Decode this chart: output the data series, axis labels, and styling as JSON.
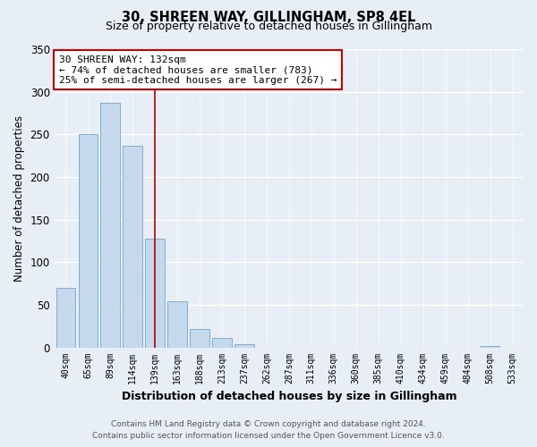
{
  "title": "30, SHREEN WAY, GILLINGHAM, SP8 4EL",
  "subtitle": "Size of property relative to detached houses in Gillingham",
  "xlabel": "Distribution of detached houses by size in Gillingham",
  "ylabel": "Number of detached properties",
  "bar_labels": [
    "40sqm",
    "65sqm",
    "89sqm",
    "114sqm",
    "139sqm",
    "163sqm",
    "188sqm",
    "213sqm",
    "237sqm",
    "262sqm",
    "287sqm",
    "311sqm",
    "336sqm",
    "360sqm",
    "385sqm",
    "410sqm",
    "434sqm",
    "459sqm",
    "484sqm",
    "508sqm",
    "533sqm"
  ],
  "bar_values": [
    70,
    250,
    287,
    237,
    128,
    54,
    22,
    11,
    4,
    0,
    0,
    0,
    0,
    0,
    0,
    0,
    0,
    0,
    0,
    2,
    0
  ],
  "bar_color": "#c6d9ec",
  "bar_edge_color": "#7bafd4",
  "vline_index": 4,
  "vline_color": "#aa0000",
  "annotation_text": "30 SHREEN WAY: 132sqm\n← 74% of detached houses are smaller (783)\n25% of semi-detached houses are larger (267) →",
  "annotation_box_facecolor": "#ffffff",
  "annotation_box_edgecolor": "#cc0000",
  "ylim": [
    0,
    350
  ],
  "yticks": [
    0,
    50,
    100,
    150,
    200,
    250,
    300,
    350
  ],
  "footer_line1": "Contains HM Land Registry data © Crown copyright and database right 2024.",
  "footer_line2": "Contains public sector information licensed under the Open Government Licence v3.0.",
  "bg_color": "#e8eef5",
  "plot_bg_color": "#e8eef5",
  "grid_color": "#ffffff"
}
